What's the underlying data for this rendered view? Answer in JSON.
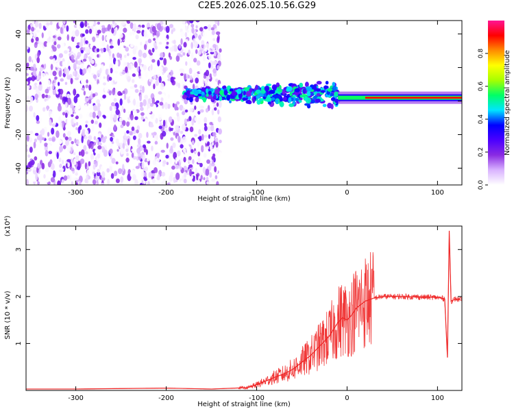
{
  "title": "C2E5.2026.025.10.56.G29",
  "chart_data": [
    {
      "type": "heatmap",
      "xlabel": "Height of straight line (km)",
      "ylabel": "Frequency (Hz)",
      "xlim": [
        -355,
        127
      ],
      "ylim": [
        -50,
        48
      ],
      "xticks": [
        -300,
        -200,
        -100,
        0,
        100
      ],
      "yticks": [
        -40,
        -20,
        0,
        20,
        40
      ],
      "colorbar": {
        "label": "Normalized spectral amplitude",
        "range": [
          0,
          1
        ],
        "ticks": [
          0.0,
          0.2,
          0.4,
          0.6,
          0.8
        ],
        "tick_labels": [
          "0.0",
          "0.2",
          "0.4",
          "0.6",
          "0.8"
        ],
        "colors": [
          "#ffffff",
          "#d9b3ff",
          "#8a2be2",
          "#4b00ff",
          "#0000ff",
          "#00e5ff",
          "#00ff66",
          "#a6ff00",
          "#ffff00",
          "#ff8c00",
          "#ff0000",
          "#ff1493"
        ]
      },
      "regions": [
        {
          "description": "scattered noise",
          "x_range": [
            -355,
            -140
          ],
          "y_range": [
            -50,
            48
          ],
          "amplitude": [
            0.0,
            0.25
          ]
        },
        {
          "description": "signal emerges",
          "x_range": [
            -180,
            -10
          ],
          "y_range": [
            -12,
            12
          ],
          "amplitude": [
            0.2,
            0.55
          ]
        },
        {
          "description": "stable carrier line",
          "x_range": [
            -10,
            127
          ],
          "y_range": [
            0,
            4
          ],
          "amplitude": [
            0.55,
            1.0
          ]
        }
      ]
    },
    {
      "type": "line",
      "xlabel": "Height of straight line (km)",
      "ylabel": "SNR (10 * v/v)",
      "scale_label": "(x10⁴)",
      "xlim": [
        -355,
        127
      ],
      "ylim": [
        0,
        3.5
      ],
      "xticks": [
        -300,
        -200,
        -100,
        0,
        100
      ],
      "yticks": [
        1,
        2,
        3
      ],
      "series": [
        {
          "name": "SNR",
          "color": "#ee2222",
          "x": [
            -355,
            -300,
            -250,
            -200,
            -150,
            -110,
            -100,
            -90,
            -80,
            -70,
            -60,
            -50,
            -40,
            -30,
            -20,
            -15,
            -10,
            -5,
            0,
            5,
            10,
            20,
            30,
            40,
            60,
            80,
            100,
            108,
            111,
            113,
            115,
            120,
            127
          ],
          "values": [
            0.03,
            0.03,
            0.04,
            0.05,
            0.03,
            0.06,
            0.12,
            0.2,
            0.28,
            0.35,
            0.45,
            0.6,
            0.75,
            0.95,
            1.15,
            1.3,
            1.45,
            1.55,
            1.5,
            1.6,
            1.75,
            1.9,
            1.97,
            2.0,
            2.0,
            1.99,
            1.98,
            1.95,
            0.7,
            3.4,
            1.9,
            1.95,
            1.92
          ]
        }
      ]
    }
  ]
}
